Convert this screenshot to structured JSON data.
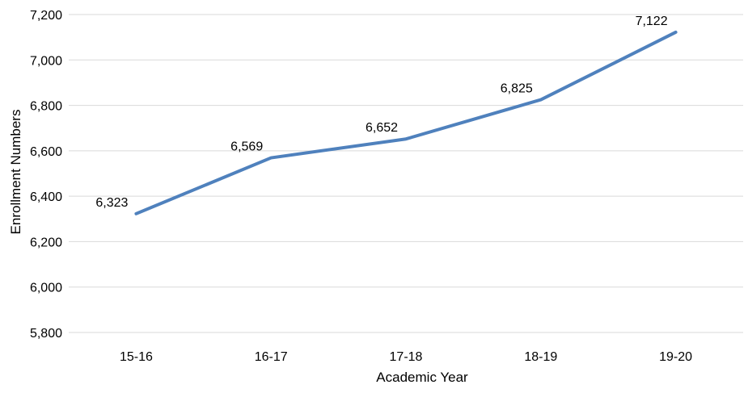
{
  "chart_data": {
    "type": "line",
    "title": "",
    "xlabel": "Academic Year",
    "ylabel": "Enrollment Numbers",
    "categories": [
      "15-16",
      "16-17",
      "17-18",
      "18-19",
      "19-20"
    ],
    "series": [
      {
        "values": [
          6323,
          6569,
          6652,
          6825,
          7122
        ],
        "data_labels": [
          "6,323",
          "6,569",
          "6,652",
          "6,825",
          "7,122"
        ]
      }
    ],
    "ylim": [
      5800,
      7200
    ],
    "yticks": [
      5800,
      6000,
      6200,
      6400,
      6600,
      6800,
      7000,
      7200
    ],
    "ytick_labels": [
      "5,800",
      "6,000",
      "6,200",
      "6,400",
      "6,600",
      "6,800",
      "7,000",
      "7,200"
    ],
    "grid": true,
    "legend": "none",
    "colors": {
      "line": "#4F81BD",
      "grid": "#D9D9D9",
      "text": "#000000"
    }
  }
}
